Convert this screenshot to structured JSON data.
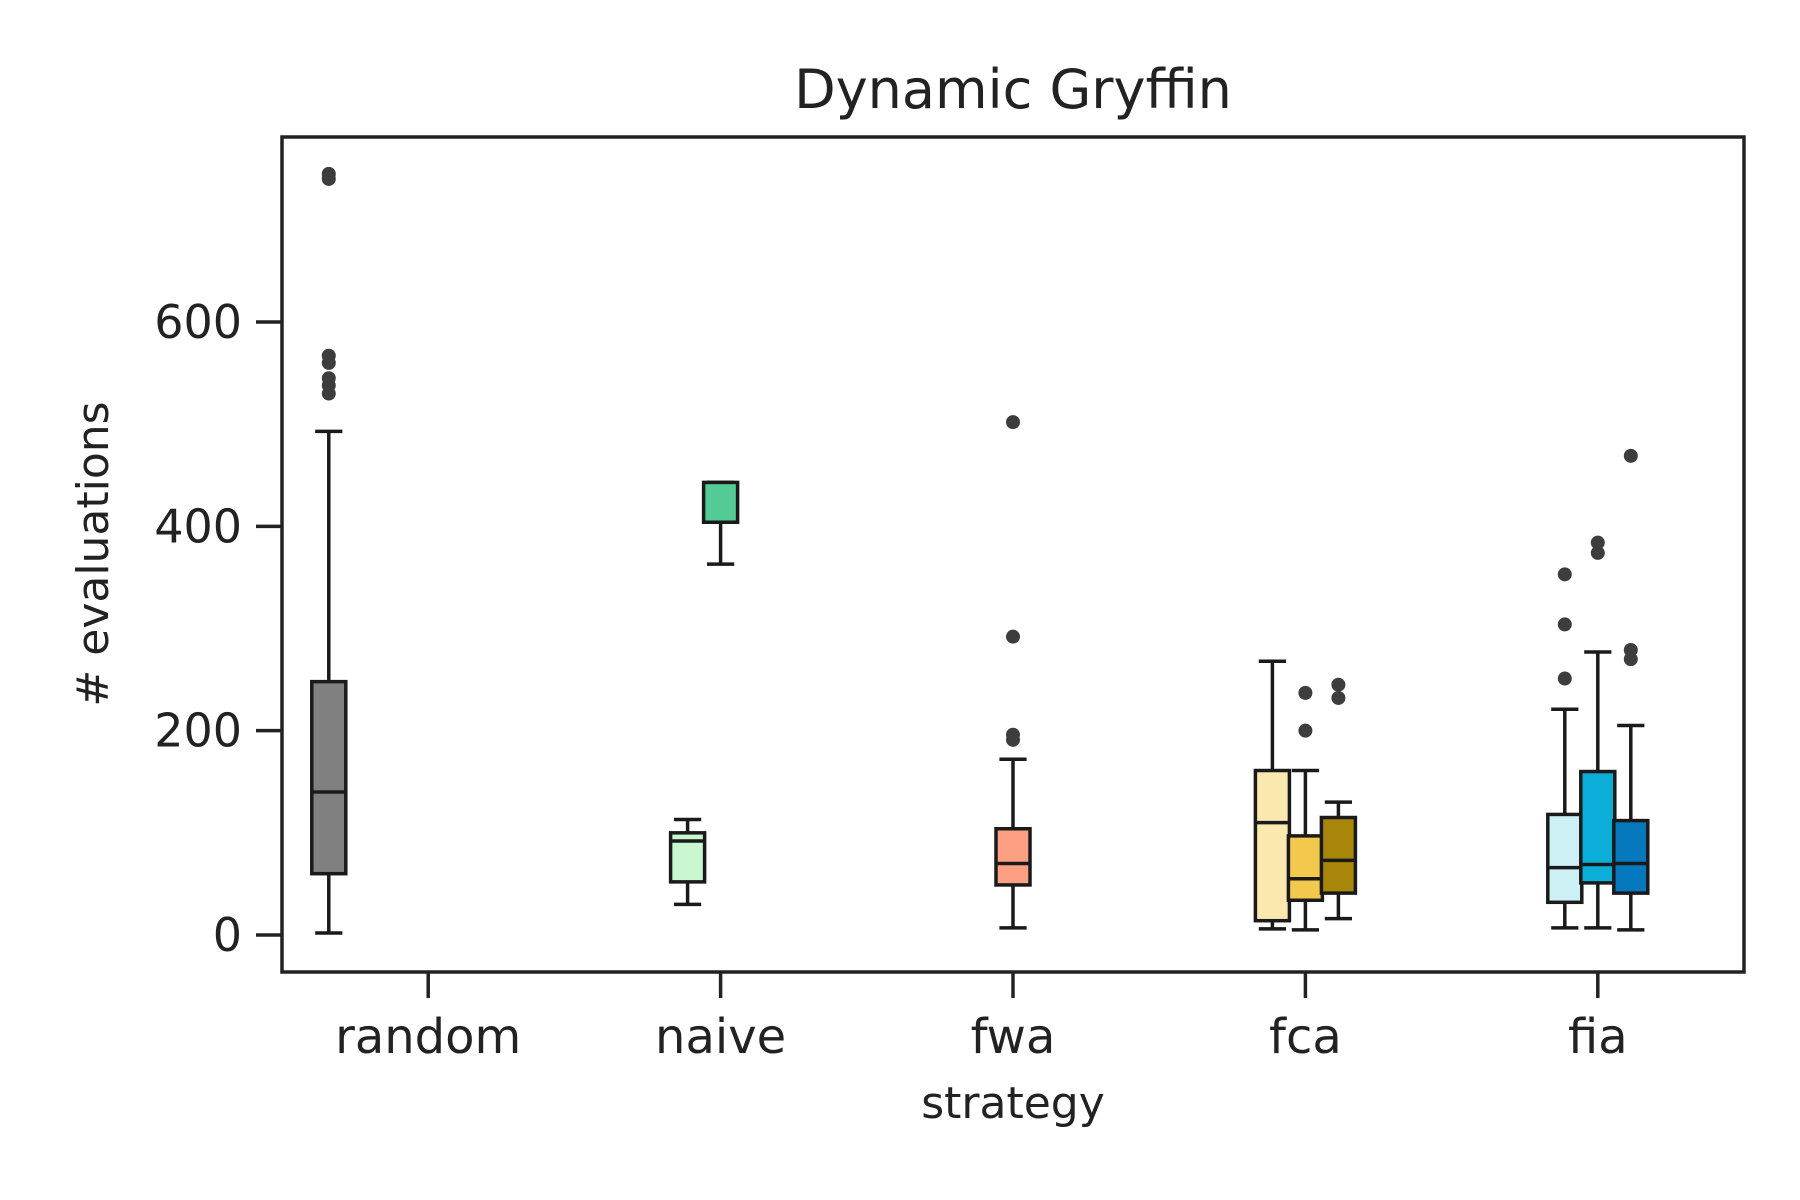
{
  "chart_data": {
    "type": "box",
    "title": "Dynamic Gryffin",
    "xlabel": "strategy",
    "ylabel": "# evaluations",
    "categories": [
      "random",
      "naive",
      "fwa",
      "fca",
      "fia"
    ],
    "yticks": [
      0,
      200,
      400,
      600
    ],
    "ylim": [
      -35,
      780
    ],
    "grid": false,
    "legend": "none",
    "boxes": [
      {
        "category": "random",
        "slot": 0,
        "n_slots": 1,
        "color": "#808080",
        "whisker_low": 2,
        "q1": 60,
        "median": 140,
        "q3": 248,
        "whisker_high": 493,
        "outliers": [
          530,
          538,
          545,
          560,
          567,
          740,
          745
        ]
      },
      {
        "category": "naive",
        "slot": 0,
        "n_slots": 3,
        "color": "#c8f7d0",
        "whisker_low": 30,
        "q1": 52,
        "median": 92,
        "q3": 100,
        "whisker_high": 113,
        "outliers": []
      },
      {
        "category": "naive",
        "slot": 1,
        "n_slots": 3,
        "color": "#52cc94",
        "whisker_low": 363,
        "q1": 404,
        "median": 404,
        "q3": 443,
        "whisker_high": 443,
        "outliers": []
      },
      {
        "category": "fwa",
        "slot": 1,
        "n_slots": 3,
        "color": "#fd9f83",
        "whisker_low": 7,
        "q1": 49,
        "median": 70,
        "q3": 104,
        "whisker_high": 172,
        "outliers": [
          191,
          196,
          292,
          502
        ]
      },
      {
        "category": "fca",
        "slot": 0,
        "n_slots": 3,
        "color": "#fbe8b0",
        "whisker_low": 6,
        "q1": 14,
        "median": 110,
        "q3": 161,
        "whisker_high": 268,
        "outliers": []
      },
      {
        "category": "fca",
        "slot": 1,
        "n_slots": 3,
        "color": "#f2c94c",
        "whisker_low": 5,
        "q1": 34,
        "median": 55,
        "q3": 97,
        "whisker_high": 161,
        "outliers": [
          200,
          237
        ]
      },
      {
        "category": "fca",
        "slot": 2,
        "n_slots": 3,
        "color": "#a8860a",
        "whisker_low": 16,
        "q1": 41,
        "median": 73,
        "q3": 115,
        "whisker_high": 130,
        "outliers": [
          232,
          245
        ]
      },
      {
        "category": "fia",
        "slot": 0,
        "n_slots": 3,
        "color": "#cdf0f6",
        "whisker_low": 7,
        "q1": 32,
        "median": 66,
        "q3": 118,
        "whisker_high": 221,
        "outliers": [
          251,
          304,
          353
        ]
      },
      {
        "category": "fia",
        "slot": 1,
        "n_slots": 3,
        "color": "#0aaed8",
        "whisker_low": 7,
        "q1": 51,
        "median": 69,
        "q3": 160,
        "whisker_high": 277,
        "outliers": [
          374,
          384
        ]
      },
      {
        "category": "fia",
        "slot": 2,
        "n_slots": 3,
        "color": "#0678be",
        "whisker_low": 5,
        "q1": 41,
        "median": 70,
        "q3": 112,
        "whisker_high": 205,
        "outliers": [
          270,
          279,
          469
        ]
      }
    ]
  }
}
